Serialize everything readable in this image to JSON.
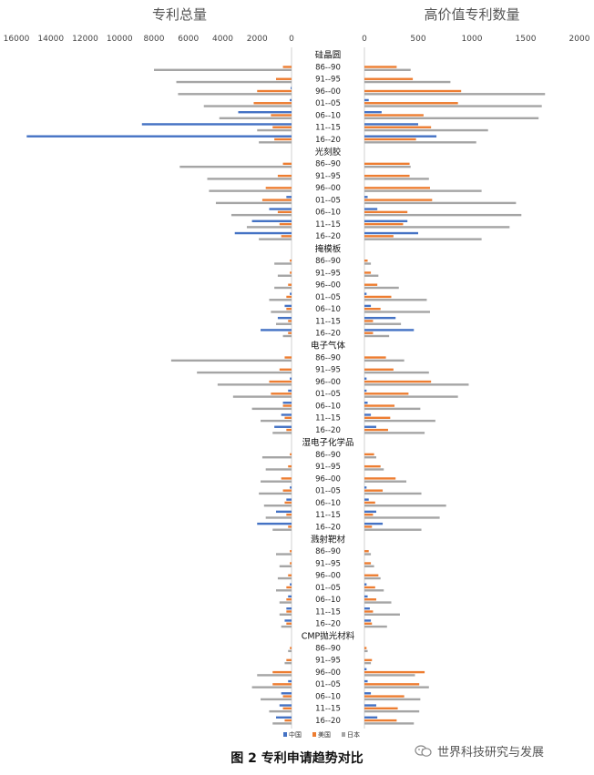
{
  "chart_data": {
    "type": "bar",
    "orientation": "horizontal-butterfly",
    "left_panel": {
      "title": "专利总量",
      "ticks": [
        "16000",
        "14000",
        "12000",
        "10000",
        "8000",
        "6000",
        "4000",
        "2000",
        "0"
      ],
      "xlim": [
        0,
        16000
      ]
    },
    "right_panel": {
      "title": "高价值专利数量",
      "ticks": [
        "0",
        "500",
        "1000",
        "1500",
        "2000"
      ],
      "xlim": [
        0,
        2000
      ]
    },
    "periods": [
      "86--90",
      "91--95",
      "96--00",
      "01--05",
      "06--10",
      "11--15",
      "16--20"
    ],
    "series": [
      {
        "name": "中国",
        "color": "#4472c4"
      },
      {
        "name": "美国",
        "color": "#ed7d31"
      },
      {
        "name": "日本",
        "color": "#a5a5a5"
      }
    ],
    "groups": [
      {
        "name": "硅晶圆",
        "total": {
          "中国": [
            0,
            0,
            50,
            100,
            3100,
            8700,
            15400
          ],
          "美国": [
            500,
            900,
            2000,
            2200,
            1200,
            1100,
            1000
          ],
          "日本": [
            8000,
            6700,
            6600,
            5100,
            4200,
            2000,
            1900
          ]
        },
        "high": {
          "中国": [
            0,
            0,
            0,
            40,
            160,
            500,
            670
          ],
          "美国": [
            300,
            450,
            900,
            870,
            550,
            620,
            480
          ],
          "日本": [
            430,
            800,
            1680,
            1650,
            1620,
            1150,
            1040
          ]
        }
      },
      {
        "name": "光刻胶",
        "total": {
          "中国": [
            0,
            0,
            0,
            300,
            1300,
            2300,
            3300
          ],
          "美国": [
            500,
            800,
            1500,
            1700,
            800,
            700,
            600
          ],
          "日本": [
            6500,
            4900,
            4800,
            4400,
            3500,
            2600,
            1900
          ]
        },
        "high": {
          "中国": [
            0,
            0,
            0,
            30,
            120,
            400,
            500
          ],
          "美国": [
            420,
            420,
            610,
            630,
            400,
            360,
            270
          ],
          "日本": [
            430,
            600,
            1090,
            1410,
            1460,
            1350,
            1090
          ]
        }
      },
      {
        "name": "掩模板",
        "total": {
          "中国": [
            0,
            0,
            0,
            100,
            400,
            800,
            1800
          ],
          "美国": [
            100,
            100,
            200,
            300,
            300,
            200,
            200
          ],
          "日本": [
            1000,
            800,
            1000,
            1300,
            1200,
            900,
            500
          ]
        },
        "high": {
          "中国": [
            0,
            0,
            0,
            20,
            60,
            290,
            460
          ],
          "美国": [
            30,
            60,
            120,
            250,
            150,
            80,
            80
          ],
          "日本": [
            60,
            130,
            320,
            580,
            610,
            340,
            230
          ]
        }
      },
      {
        "name": "电子气体",
        "total": {
          "中国": [
            0,
            0,
            100,
            200,
            500,
            600,
            1000
          ],
          "美国": [
            400,
            700,
            1300,
            1200,
            500,
            400,
            300
          ],
          "日本": [
            7000,
            5500,
            4300,
            3400,
            2300,
            1800,
            1100
          ]
        },
        "high": {
          "中国": [
            0,
            0,
            20,
            20,
            30,
            60,
            110
          ],
          "美国": [
            200,
            270,
            620,
            410,
            280,
            240,
            220
          ],
          "日本": [
            370,
            600,
            970,
            870,
            520,
            660,
            560
          ]
        }
      },
      {
        "name": "湿电子化学品",
        "total": {
          "中国": [
            0,
            0,
            0,
            100,
            300,
            900,
            2000
          ],
          "美国": [
            100,
            200,
            600,
            500,
            400,
            300,
            200
          ],
          "日本": [
            1700,
            1500,
            1800,
            1900,
            1600,
            1500,
            1100
          ]
        },
        "high": {
          "中国": [
            0,
            0,
            0,
            20,
            40,
            110,
            170
          ],
          "美国": [
            90,
            150,
            290,
            170,
            100,
            80,
            70
          ],
          "日本": [
            110,
            180,
            390,
            530,
            760,
            700,
            530
          ]
        }
      },
      {
        "name": "溅射靶材",
        "total": {
          "中国": [
            0,
            0,
            0,
            100,
            200,
            300,
            400
          ],
          "美国": [
            100,
            100,
            200,
            300,
            300,
            300,
            300
          ],
          "日本": [
            900,
            700,
            800,
            900,
            700,
            700,
            600
          ]
        },
        "high": {
          "中国": [
            0,
            0,
            0,
            20,
            30,
            50,
            60
          ],
          "美国": [
            40,
            60,
            130,
            100,
            110,
            80,
            70
          ],
          "日本": [
            60,
            90,
            150,
            180,
            250,
            330,
            210
          ]
        }
      },
      {
        "name": "CMP抛光材料",
        "total": {
          "中国": [
            0,
            0,
            0,
            200,
            600,
            700,
            900
          ],
          "美国": [
            100,
            300,
            1100,
            1100,
            500,
            500,
            400
          ],
          "日本": [
            200,
            400,
            2000,
            2300,
            1800,
            1300,
            1100
          ]
        },
        "high": {
          "中国": [
            0,
            0,
            20,
            30,
            60,
            110,
            120
          ],
          "美国": [
            20,
            70,
            560,
            510,
            370,
            310,
            300
          ],
          "日本": [
            30,
            60,
            470,
            600,
            520,
            510,
            460
          ]
        }
      }
    ],
    "legend": {
      "placement": "bottom-center",
      "entries": [
        "中国",
        "美国",
        "日本"
      ]
    },
    "grid": false
  },
  "caption": "图 2  专利申请趋势对比",
  "watermark": "世界科技研究与发展",
  "icons": {
    "watermark": "wechat-icon"
  }
}
